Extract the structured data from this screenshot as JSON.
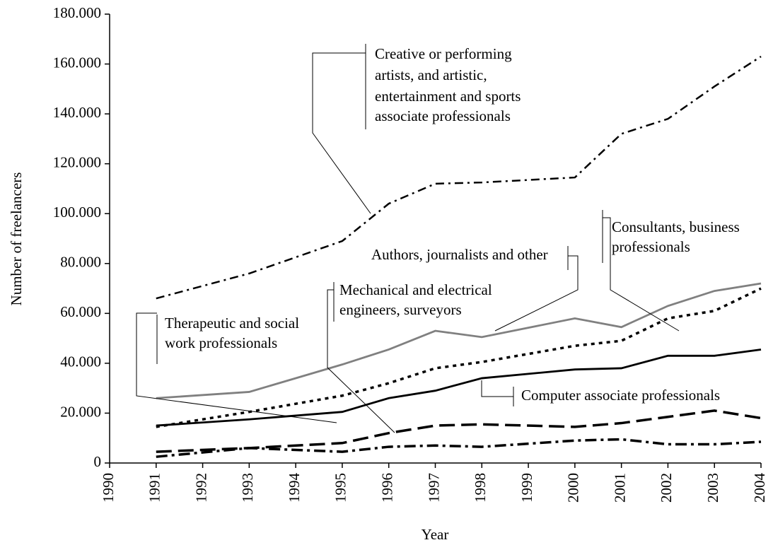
{
  "chart_data": {
    "type": "line",
    "x_label": "Year",
    "y_label": "Number of freelancers",
    "x": [
      1991,
      1993,
      1995,
      1996,
      1997,
      1998,
      2000,
      2001,
      2002,
      2003,
      2004
    ],
    "xlim": [
      1990,
      2004
    ],
    "xticks": [
      1990,
      1991,
      1992,
      1993,
      1994,
      1995,
      1996,
      1997,
      1998,
      1999,
      2000,
      2001,
      2002,
      2003,
      2004
    ],
    "ylim": [
      0,
      180000
    ],
    "yticks": [
      0,
      {
        "value": 20000,
        "label": "20.000"
      },
      {
        "value": 40000,
        "label": "40.000"
      },
      {
        "value": 60000,
        "label": "60.000"
      },
      {
        "value": 80000,
        "label": "80.000"
      },
      {
        "value": 100000,
        "label": "100.000"
      },
      {
        "value": 120000,
        "label": "120.000"
      },
      {
        "value": 140000,
        "label": "140.000"
      },
      {
        "value": 160000,
        "label": "160.000"
      },
      {
        "value": 180000,
        "label": "180.000"
      }
    ],
    "series": [
      {
        "label": [
          "Creative or performing",
          "artists, and artistic,",
          "entertainment and sports",
          "associate professionals"
        ],
        "color": "#000000",
        "style": "dash-dot",
        "values": [
          66000,
          76000,
          89000,
          104000,
          112000,
          112500,
          114500,
          132000,
          138000,
          151000,
          163000
        ]
      },
      {
        "label": [
          "Consultants, business",
          "professionals"
        ],
        "color": "#808080",
        "style": "solid",
        "values": [
          26000,
          28500,
          39500,
          45500,
          53000,
          50500,
          58000,
          54500,
          63000,
          69000,
          72000
        ]
      },
      {
        "label": [
          "Authors, journalists and other"
        ],
        "color": "#000000",
        "style": "dotted",
        "values": [
          14500,
          20500,
          27000,
          32000,
          38000,
          40500,
          47000,
          49000,
          58000,
          61000,
          70000
        ]
      },
      {
        "label": [
          "Computer associate professionals"
        ],
        "color": "#000000",
        "style": "solid",
        "values": [
          15000,
          17500,
          20500,
          26000,
          29000,
          34000,
          37500,
          38000,
          43000,
          43000,
          45500
        ]
      },
      {
        "label": [
          "Mechanical and electrical",
          "engineers, surveyors"
        ],
        "color": "#000000",
        "style": "dashed",
        "values": [
          4500,
          6000,
          8000,
          12000,
          15000,
          15500,
          14500,
          16000,
          18500,
          21000,
          18000
        ]
      },
      {
        "label": [
          "Therapeutic and social",
          "work professionals"
        ],
        "color": "#000000",
        "style": "long-dash-dot",
        "values": [
          2500,
          6000,
          4500,
          6500,
          7000,
          6500,
          9000,
          9500,
          7500,
          7500,
          8500
        ]
      }
    ]
  }
}
